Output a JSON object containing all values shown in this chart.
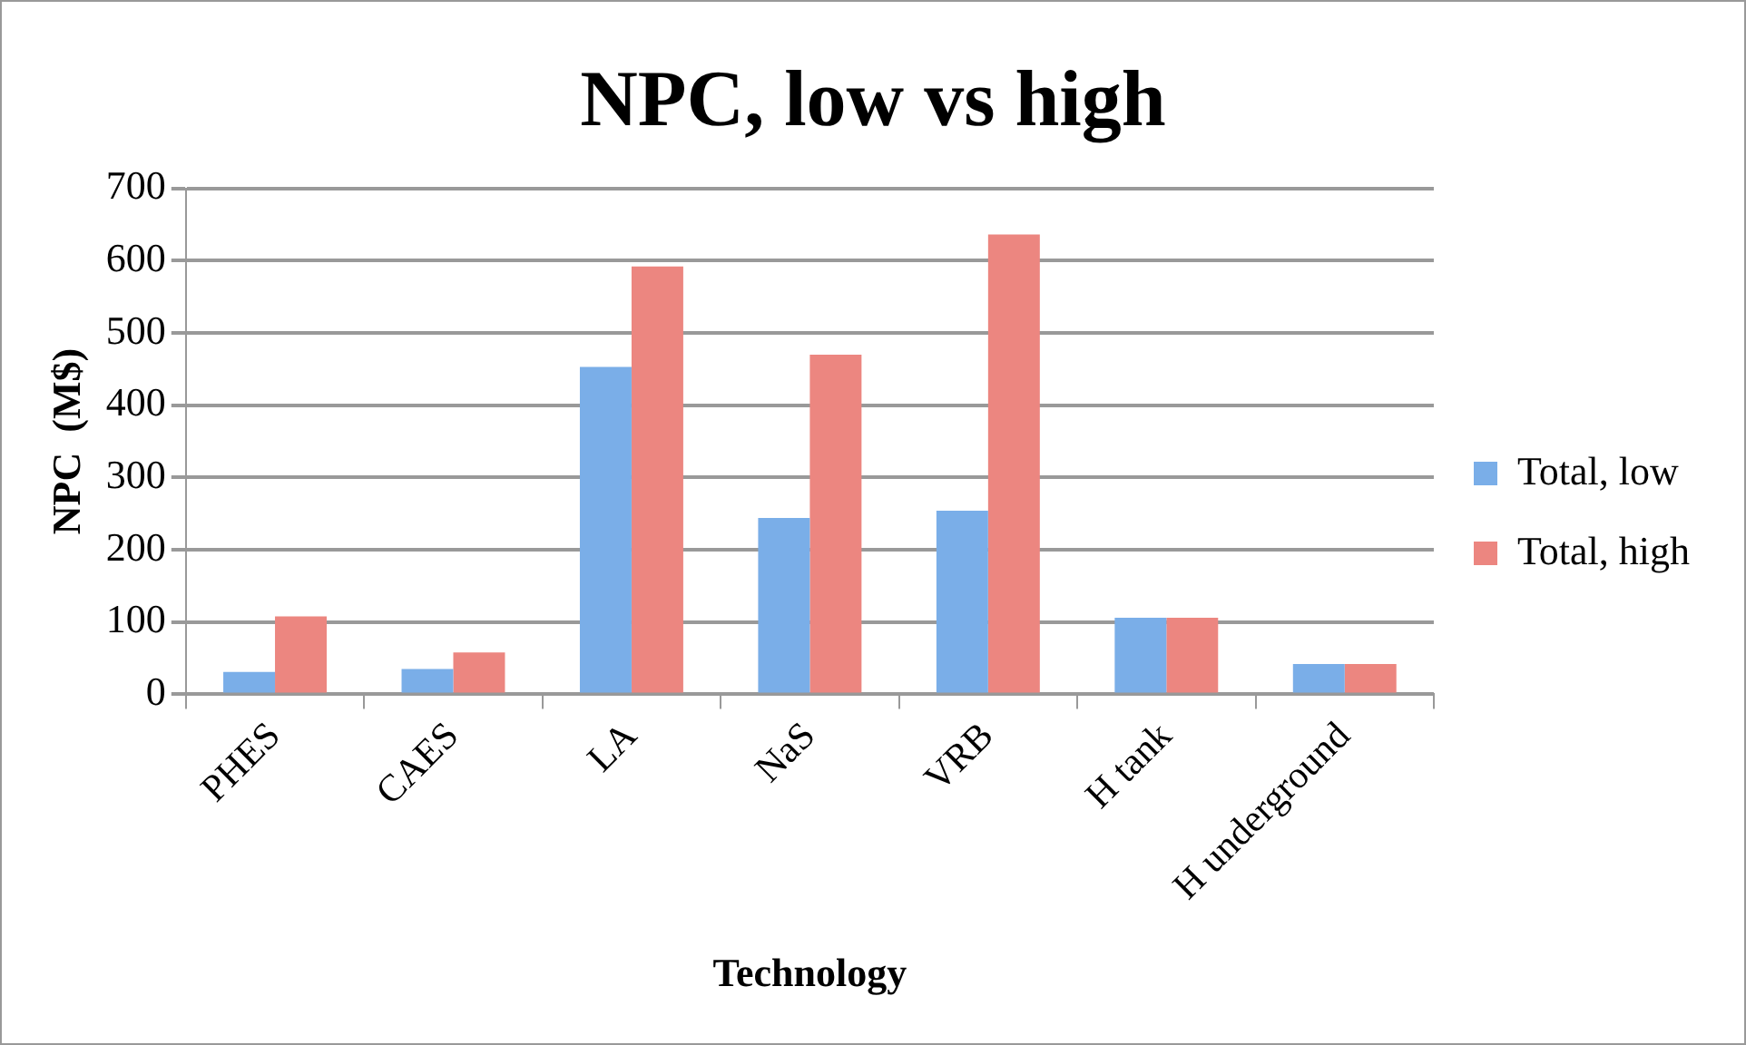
{
  "chart_data": {
    "type": "bar",
    "title": "NPC, low vs high",
    "xlabel": "Technology",
    "ylabel": "NPC  (M$)",
    "categories": [
      "PHES",
      "CAES",
      "LA",
      "NaS",
      "VRB",
      "H tank",
      "H underground"
    ],
    "series": [
      {
        "name": "Total, low",
        "color": "#7aaee8",
        "values": [
          31,
          35,
          453,
          244,
          254,
          106,
          42
        ]
      },
      {
        "name": "Total, high",
        "color": "#ec8680",
        "values": [
          108,
          58,
          592,
          470,
          636,
          106,
          42
        ]
      }
    ],
    "ylim": [
      0,
      700
    ],
    "yticks": [
      0,
      100,
      200,
      300,
      400,
      500,
      600,
      700
    ],
    "grid": "y",
    "legend": "right"
  }
}
